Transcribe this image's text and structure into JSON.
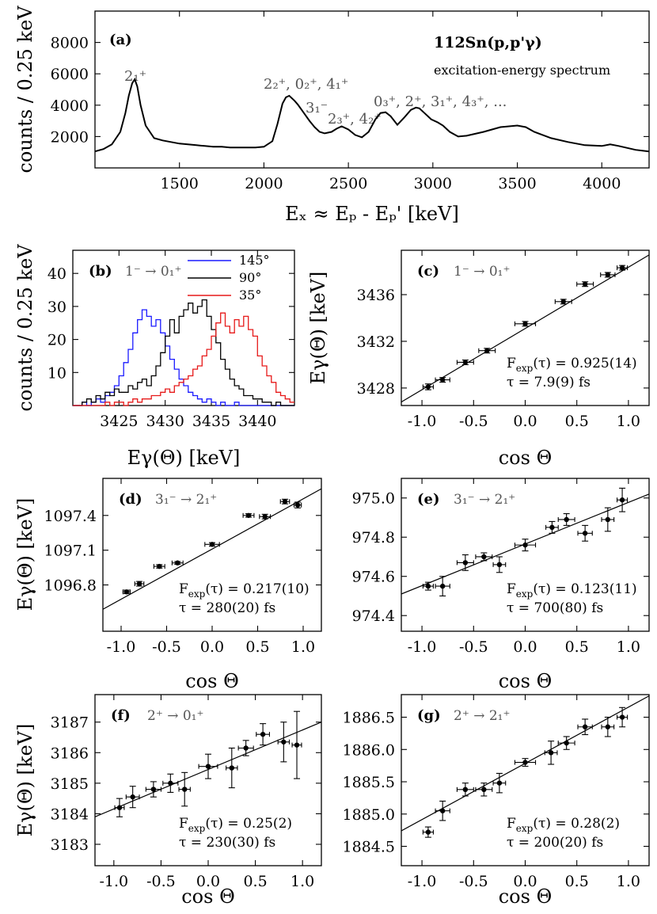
{
  "figure_labels": {
    "a_reaction": "112Sn(p,p'γ)",
    "a_subtitle": "excitation-energy spectrum",
    "a_peak_21": "2₁⁺",
    "a_peak_group1": "2₂⁺, 0₂⁺, 4₁⁺",
    "a_peak_31": "3₁⁻",
    "a_peak_group2": "2₃⁺, 4₂⁺",
    "a_peak_group3": "0₃⁺, 2⁺, 3₁⁺, 4₃⁺, ..."
  },
  "chart_data": [
    {
      "panel": "(a)",
      "type": "line",
      "xlabel": "Eₓ ≈ Eₚ - Eₚ'  [keV]",
      "ylabel": "counts / 0.25 keV",
      "xlim": [
        1000,
        4280
      ],
      "ylim": [
        0,
        10000
      ],
      "xticks": [
        1500,
        2000,
        2500,
        3000,
        3500,
        4000
      ],
      "yticks": [
        2000,
        4000,
        6000,
        8000
      ],
      "x": [
        1000,
        1050,
        1100,
        1150,
        1180,
        1200,
        1220,
        1235,
        1250,
        1270,
        1300,
        1350,
        1400,
        1450,
        1500,
        1550,
        1600,
        1650,
        1700,
        1750,
        1800,
        1850,
        1900,
        1950,
        2000,
        2050,
        2080,
        2110,
        2130,
        2150,
        2180,
        2200,
        2230,
        2270,
        2300,
        2330,
        2360,
        2400,
        2430,
        2460,
        2500,
        2540,
        2580,
        2620,
        2660,
        2690,
        2720,
        2750,
        2790,
        2830,
        2870,
        2900,
        2920,
        2950,
        2990,
        3030,
        3060,
        3100,
        3150,
        3200,
        3300,
        3400,
        3500,
        3550,
        3600,
        3700,
        3800,
        3900,
        4000,
        4050,
        4100,
        4200,
        4280
      ],
      "values": [
        1050,
        1200,
        1500,
        2300,
        3500,
        4600,
        5400,
        5650,
        5200,
        4000,
        2700,
        1900,
        1750,
        1650,
        1550,
        1500,
        1450,
        1400,
        1350,
        1350,
        1300,
        1300,
        1300,
        1300,
        1350,
        1700,
        2800,
        4100,
        4500,
        4600,
        4300,
        4050,
        3600,
        3000,
        2600,
        2300,
        2200,
        2300,
        2500,
        2650,
        2450,
        2100,
        1950,
        2300,
        3100,
        3500,
        3550,
        3300,
        2750,
        3200,
        3700,
        3850,
        3800,
        3500,
        3100,
        2900,
        2700,
        2300,
        2000,
        2050,
        2300,
        2600,
        2700,
        2600,
        2300,
        1900,
        1650,
        1450,
        1400,
        1500,
        1400,
        1150,
        1050
      ]
    },
    {
      "panel": "(b)",
      "type": "line",
      "transition": "1⁻ → 0₁⁺",
      "xlabel": "Eγ(Θ)  [keV]",
      "ylabel": "counts / 0.25 keV",
      "xlim": [
        3420,
        3444
      ],
      "ylim": [
        0,
        47
      ],
      "xticks": [
        3425,
        3430,
        3435,
        3440
      ],
      "yticks": [
        10,
        20,
        30,
        40
      ],
      "x": [
        3420.0,
        3420.5,
        3421.0,
        3421.5,
        3422.0,
        3422.5,
        3423.0,
        3423.5,
        3424.0,
        3424.5,
        3425.0,
        3425.5,
        3426.0,
        3426.5,
        3427.0,
        3427.5,
        3428.0,
        3428.5,
        3429.0,
        3429.5,
        3430.0,
        3430.5,
        3431.0,
        3431.5,
        3432.0,
        3432.5,
        3433.0,
        3433.5,
        3434.0,
        3434.5,
        3435.0,
        3435.5,
        3436.0,
        3436.5,
        3437.0,
        3437.5,
        3438.0,
        3438.5,
        3439.0,
        3439.5,
        3440.0,
        3440.5,
        3441.0,
        3441.5,
        3442.0,
        3442.5,
        3443.0,
        3443.5
      ],
      "series": [
        {
          "name": "145°",
          "color": "#1a1aff",
          "values": [
            0,
            0,
            1,
            0,
            1,
            2,
            1,
            3,
            4,
            6,
            9,
            13,
            17,
            22,
            26,
            29,
            27,
            24,
            26,
            22,
            18,
            14,
            11,
            8,
            6,
            4,
            3,
            2,
            1,
            2,
            1,
            0,
            1,
            0,
            0,
            1,
            0,
            0,
            0,
            0,
            0,
            0,
            0,
            0,
            0,
            0,
            0,
            0
          ]
        },
        {
          "name": "90°",
          "color": "#000000",
          "values": [
            0,
            0,
            1,
            2,
            1,
            3,
            2,
            4,
            3,
            5,
            4,
            4,
            6,
            5,
            7,
            8,
            6,
            9,
            12,
            16,
            21,
            26,
            22,
            27,
            29,
            31,
            28,
            30,
            32,
            27,
            23,
            19,
            14,
            11,
            8,
            6,
            5,
            3,
            3,
            2,
            2,
            1,
            1,
            0,
            1,
            0,
            0,
            0
          ]
        },
        {
          "name": "35°",
          "color": "#e61919",
          "values": [
            0,
            0,
            0,
            0,
            0,
            0,
            0,
            1,
            0,
            1,
            1,
            0,
            1,
            2,
            1,
            2,
            2,
            3,
            3,
            4,
            5,
            4,
            6,
            7,
            8,
            9,
            11,
            12,
            15,
            17,
            21,
            25,
            28,
            24,
            22,
            26,
            24,
            27,
            23,
            21,
            15,
            12,
            9,
            7,
            4,
            3,
            2,
            1
          ]
        }
      ]
    },
    {
      "panel": "(c)",
      "type": "scatter",
      "transition": "1⁻ → 0₁⁺",
      "xlabel": "cos Θ",
      "ylabel": "Eγ(Θ)  [keV]",
      "xlim": [
        -1.2,
        1.2
      ],
      "ylim": [
        3426.5,
        3439.8
      ],
      "xticks": [
        -1.0,
        -0.5,
        0.0,
        0.5,
        1.0
      ],
      "yticks": [
        3428,
        3432,
        3436
      ],
      "x": [
        -0.94,
        -0.8,
        -0.58,
        -0.37,
        0.0,
        0.37,
        0.58,
        0.8,
        0.94
      ],
      "values": [
        3428.1,
        3428.7,
        3430.2,
        3431.2,
        3433.5,
        3435.4,
        3436.9,
        3437.7,
        3438.3
      ],
      "yerr": [
        0.25,
        0.2,
        0.2,
        0.2,
        0.2,
        0.2,
        0.2,
        0.2,
        0.2
      ],
      "xerr": [
        0.05,
        0.07,
        0.08,
        0.08,
        0.1,
        0.08,
        0.08,
        0.07,
        0.05
      ],
      "fit": {
        "x0": -1.2,
        "y0": 3426.8,
        "x1": 1.2,
        "y1": 3439.4
      },
      "fexp": "F",
      "fexp_sub": "exp",
      "fexp_rest": "(τ) = 0.925(14)",
      "tau": "τ = 7.9(9)  fs"
    },
    {
      "panel": "(d)",
      "type": "scatter",
      "transition": "3₁⁻ → 2₁⁺",
      "xlabel": "cos Θ",
      "ylabel": "Eγ(Θ)  [keV]",
      "xlim": [
        -1.2,
        1.2
      ],
      "ylim": [
        1096.4,
        1097.72
      ],
      "xticks": [
        -1.0,
        -0.5,
        0.0,
        0.5,
        1.0
      ],
      "yticks": [
        1096.8,
        1097.1,
        1097.4
      ],
      "x": [
        -0.94,
        -0.8,
        -0.58,
        -0.38,
        0.0,
        0.4,
        0.58,
        0.8,
        0.94
      ],
      "values": [
        1096.74,
        1096.81,
        1096.96,
        1096.99,
        1097.15,
        1097.4,
        1097.39,
        1097.52,
        1097.49
      ],
      "yerr": [
        0.015,
        0.02,
        0.015,
        0.012,
        0.015,
        0.015,
        0.02,
        0.02,
        0.025
      ],
      "xerr": [
        0.04,
        0.05,
        0.06,
        0.06,
        0.08,
        0.06,
        0.06,
        0.05,
        0.04
      ],
      "fit": {
        "x0": -1.2,
        "y0": 1096.59,
        "x1": 1.2,
        "y1": 1097.63
      },
      "fexp": "F",
      "fexp_sub": "exp",
      "fexp_rest": "(τ) = 0.217(10)",
      "tau": "τ = 280(20)  fs"
    },
    {
      "panel": "(e)",
      "type": "scatter",
      "transition": "3₁⁻ → 2₁⁺",
      "xlabel": "cos Θ",
      "ylabel": "",
      "xlim": [
        -1.2,
        1.2
      ],
      "ylim": [
        974.32,
        975.1
      ],
      "xticks": [
        -1.0,
        -0.5,
        0.0,
        0.5,
        1.0
      ],
      "yticks": [
        974.4,
        974.6,
        974.8,
        975.0
      ],
      "x": [
        -0.94,
        -0.8,
        -0.58,
        -0.4,
        -0.25,
        0.0,
        0.26,
        0.4,
        0.58,
        0.8,
        0.94
      ],
      "values": [
        974.55,
        974.55,
        974.67,
        974.7,
        974.66,
        974.76,
        974.85,
        974.89,
        974.82,
        974.89,
        974.99
      ],
      "yerr": [
        0.02,
        0.05,
        0.04,
        0.02,
        0.04,
        0.03,
        0.03,
        0.03,
        0.04,
        0.06,
        0.06
      ],
      "xerr": [
        0.05,
        0.07,
        0.08,
        0.08,
        0.06,
        0.1,
        0.06,
        0.08,
        0.07,
        0.06,
        0.05
      ],
      "fit": {
        "x0": -1.2,
        "y0": 974.51,
        "x1": 1.2,
        "y1": 975.02
      },
      "fexp": "F",
      "fexp_sub": "exp",
      "fexp_rest": "(τ) = 0.123(11)",
      "tau": "τ = 700(80)  fs"
    },
    {
      "panel": "(f)",
      "type": "scatter",
      "transition": "2⁺ → 0₁⁺",
      "xlabel": "cos Θ",
      "ylabel": "Eγ(Θ)  [keV]",
      "xlim": [
        -1.2,
        1.2
      ],
      "ylim": [
        3182.3,
        3187.9
      ],
      "xticks": [
        -1.0,
        -0.5,
        0.0,
        0.5,
        1.0
      ],
      "yticks": [
        3183,
        3184,
        3185,
        3186,
        3187
      ],
      "x": [
        -0.94,
        -0.8,
        -0.58,
        -0.4,
        -0.25,
        0.0,
        0.25,
        0.4,
        0.58,
        0.8,
        0.94
      ],
      "values": [
        3184.2,
        3184.55,
        3184.8,
        3185.0,
        3184.8,
        3185.55,
        3185.5,
        3186.15,
        3186.6,
        3186.35,
        3186.25
      ],
      "yerr": [
        0.3,
        0.35,
        0.25,
        0.3,
        0.55,
        0.4,
        0.65,
        0.25,
        0.35,
        0.65,
        1.1
      ],
      "xerr": [
        0.05,
        0.07,
        0.08,
        0.08,
        0.06,
        0.1,
        0.06,
        0.08,
        0.07,
        0.06,
        0.05
      ],
      "fit": {
        "x0": -1.2,
        "y0": 3183.9,
        "x1": 1.2,
        "y1": 3187.0
      },
      "fexp": "F",
      "fexp_sub": "exp",
      "fexp_rest": "(τ) = 0.25(2)",
      "tau": "τ = 230(30)  fs"
    },
    {
      "panel": "(g)",
      "type": "scatter",
      "transition": "2⁺ → 2₁⁺",
      "xlabel": "cos Θ",
      "ylabel": "",
      "xlim": [
        -1.2,
        1.2
      ],
      "ylim": [
        1884.2,
        1886.85
      ],
      "xticks": [
        -1.0,
        -0.5,
        0.0,
        0.5,
        1.0
      ],
      "yticks": [
        1884.5,
        1885.0,
        1885.5,
        1886.0,
        1886.5
      ],
      "x": [
        -0.94,
        -0.8,
        -0.58,
        -0.4,
        -0.25,
        0.0,
        0.25,
        0.4,
        0.58,
        0.8,
        0.94
      ],
      "values": [
        1884.72,
        1885.05,
        1885.38,
        1885.38,
        1885.48,
        1885.8,
        1885.95,
        1886.1,
        1886.35,
        1886.35,
        1886.5
      ],
      "yerr": [
        0.08,
        0.15,
        0.1,
        0.1,
        0.15,
        0.06,
        0.18,
        0.1,
        0.12,
        0.15,
        0.15
      ],
      "xerr": [
        0.05,
        0.07,
        0.08,
        0.08,
        0.06,
        0.1,
        0.06,
        0.08,
        0.07,
        0.06,
        0.05
      ],
      "fit": {
        "x0": -1.2,
        "y0": 1884.74,
        "x1": 1.2,
        "y1": 1886.83
      },
      "fexp": "F",
      "fexp_sub": "exp",
      "fexp_rest": "(τ) = 0.28(2)",
      "tau": "τ = 200(20)  fs"
    }
  ]
}
